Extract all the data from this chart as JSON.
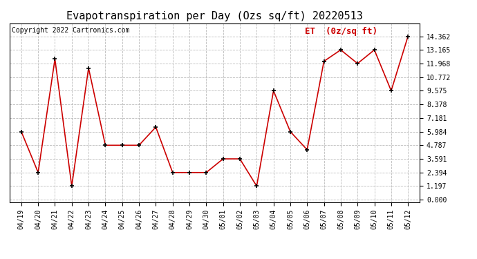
{
  "title": "Evapotranspiration per Day (Ozs sq/ft) 20220513",
  "copyright_text": "Copyright 2022 Cartronics.com",
  "legend_label": "ET  (0z/sq ft)",
  "x_labels": [
    "04/19",
    "04/20",
    "04/21",
    "04/22",
    "04/23",
    "04/24",
    "04/25",
    "04/26",
    "04/27",
    "04/28",
    "04/29",
    "04/30",
    "05/01",
    "05/02",
    "05/03",
    "05/04",
    "05/05",
    "05/06",
    "05/07",
    "05/08",
    "05/09",
    "05/10",
    "05/11",
    "05/12"
  ],
  "y_values": [
    5.984,
    2.394,
    12.362,
    1.197,
    11.571,
    4.787,
    4.787,
    4.787,
    6.384,
    2.394,
    2.394,
    2.394,
    3.591,
    3.591,
    1.197,
    9.575,
    5.984,
    4.394,
    12.165,
    13.165,
    11.968,
    13.165,
    9.575,
    14.362
  ],
  "line_color": "#cc0000",
  "marker_color": "#000000",
  "background_color": "#ffffff",
  "grid_color": "#bbbbbb",
  "y_ticks": [
    0.0,
    1.197,
    2.394,
    3.591,
    4.787,
    5.984,
    7.181,
    8.378,
    9.575,
    10.772,
    11.968,
    13.165,
    14.362
  ],
  "ylim": [
    -0.2,
    15.5
  ],
  "xlim": [
    -0.7,
    23.7
  ],
  "title_fontsize": 11,
  "copyright_fontsize": 7,
  "legend_fontsize": 9,
  "tick_fontsize": 7,
  "ytick_fontsize": 7
}
